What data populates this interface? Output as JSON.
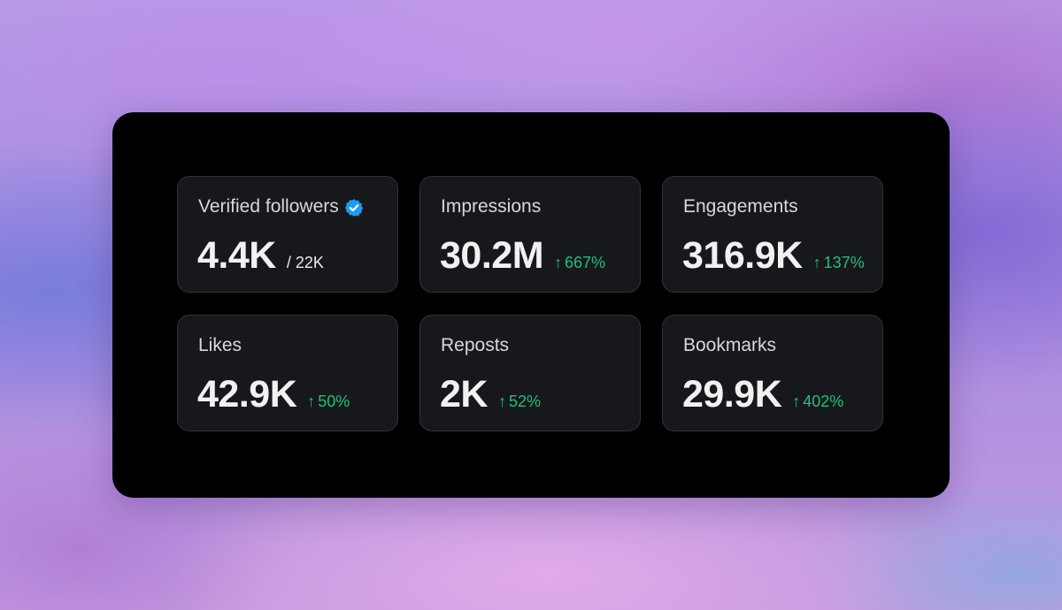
{
  "colors": {
    "panel_background": "#000000",
    "card_background": "#16181c",
    "card_border": "#2f3336",
    "label": "#d6d9db",
    "value": "#eff1f3",
    "positive_change": "#1ec17a",
    "verified_badge": "#1d9bf0"
  },
  "metrics": [
    {
      "label": "Verified followers",
      "value": "4.4K",
      "sub": "/ 22K",
      "icon": "verified-badge-icon"
    },
    {
      "label": "Impressions",
      "value": "30.2M",
      "arrow": "↑",
      "change": "667%",
      "icon": "arrow-up-icon"
    },
    {
      "label": "Engagements",
      "value": "316.9K",
      "arrow": "↑",
      "change": "137%",
      "icon": "arrow-up-icon"
    },
    {
      "label": "Likes",
      "value": "42.9K",
      "arrow": "↑",
      "change": "50%",
      "icon": "arrow-up-icon"
    },
    {
      "label": "Reposts",
      "value": "2K",
      "arrow": "↑",
      "change": "52%",
      "icon": "arrow-up-icon"
    },
    {
      "label": "Bookmarks",
      "value": "29.9K",
      "arrow": "↑",
      "change": "402%",
      "icon": "arrow-up-icon"
    }
  ]
}
